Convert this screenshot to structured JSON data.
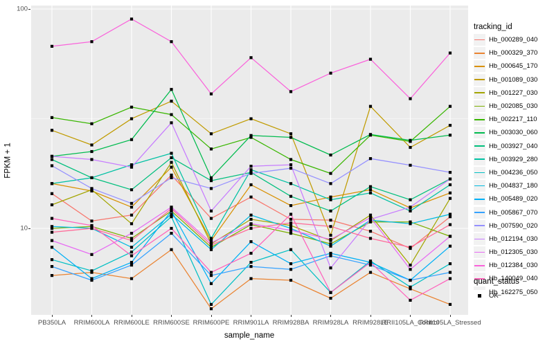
{
  "chart": {
    "y_axis": {
      "label": "FPKM + 1",
      "ticks": [
        "100",
        "10"
      ],
      "tick_values": [
        100,
        10
      ],
      "minor_tick_values": [
        31.62
      ],
      "range_approx": [
        4.0,
        104
      ],
      "scale": "log10"
    },
    "x_axis": {
      "label": "sample_name"
    },
    "legend": {
      "tracking_title": "tracking_id",
      "quant_title": "quant_status",
      "quant_items": [
        {
          "label": "OK",
          "symbol": "black-square"
        }
      ]
    },
    "panel_bg": "#EBEBEB",
    "grid_color": "#FFFFFF",
    "point_color": "#000000",
    "tick_label_color": "#4D4D4D"
  },
  "chart_data": {
    "type": "line",
    "title": "",
    "xlabel": "sample_name",
    "ylabel": "FPKM + 1",
    "y_scale": "log10",
    "grid": true,
    "legend_position": "right",
    "marker": "black-square",
    "categories": [
      "PB350LA",
      "RRIM600LA",
      "RRIM600LE",
      "RRIM600SE",
      "RRIM600PE",
      "RRIM901LA",
      "RRIM928BA",
      "RRIM928LA",
      "RRIM928LE",
      "RRII105LA_Control",
      "RRII105LA_Stressed"
    ],
    "series": [
      {
        "name": "Hb_000289_040",
        "color": "#F8766D",
        "values": [
          14.4,
          10.8,
          11.5,
          17.5,
          11.1,
          13.9,
          11.0,
          10.9,
          9.7,
          8.1,
          11.3
        ]
      },
      {
        "name": "Hb_000329_370",
        "color": "#EA8331",
        "values": [
          6.1,
          6.3,
          5.9,
          8.0,
          4.3,
          5.9,
          5.8,
          4.8,
          6.3,
          5.3,
          4.5
        ]
      },
      {
        "name": "Hb_000645_170",
        "color": "#D89000",
        "values": [
          16.0,
          14.8,
          12.5,
          19.0,
          8.8,
          15.8,
          12.7,
          13.9,
          15.0,
          12.4,
          14.5
        ]
      },
      {
        "name": "Hb_001089_030",
        "color": "#C09B00",
        "values": [
          28.0,
          24.0,
          31.6,
          38.0,
          27.0,
          31.6,
          27.0,
          9.3,
          36.0,
          23.4,
          29.5
        ]
      },
      {
        "name": "Hb_001227_030",
        "color": "#A3A500",
        "values": [
          12.8,
          15.0,
          10.5,
          20.0,
          8.5,
          11.0,
          10.3,
          8.8,
          11.5,
          6.8,
          13.7
        ]
      },
      {
        "name": "Hb_002085_030",
        "color": "#7CAE00",
        "values": [
          10.0,
          10.2,
          9.0,
          12.0,
          8.2,
          10.4,
          9.5,
          8.5,
          10.7,
          10.7,
          9.2
        ]
      },
      {
        "name": "Hb_002217_110",
        "color": "#39B600",
        "values": [
          32.0,
          30.0,
          35.7,
          33.0,
          23.0,
          26.0,
          20.6,
          17.8,
          26.6,
          24.9,
          36.0
        ]
      },
      {
        "name": "Hb_003030_060",
        "color": "#00BB4E",
        "values": [
          21.3,
          22.4,
          25.4,
          43.0,
          17.0,
          26.5,
          26.0,
          21.6,
          26.8,
          25.2,
          26.6
        ]
      },
      {
        "name": "Hb_003927_040",
        "color": "#00BF7D",
        "values": [
          20.6,
          17.0,
          15.0,
          21.0,
          16.5,
          18.0,
          14.0,
          12.0,
          15.5,
          13.5,
          16.8
        ]
      },
      {
        "name": "Hb_003929_280",
        "color": "#00C1A3",
        "values": [
          16.0,
          17.0,
          19.5,
          22.0,
          9.0,
          18.5,
          16.0,
          13.5,
          14.5,
          12.0,
          15.8
        ]
      },
      {
        "name": "Hb_004236_050",
        "color": "#00BFC4",
        "values": [
          7.2,
          6.4,
          7.8,
          11.3,
          4.5,
          7.0,
          8.0,
          5.1,
          7.1,
          5.4,
          6.9
        ]
      },
      {
        "name": "Hb_004837_180",
        "color": "#00BAE0",
        "values": [
          10.2,
          10.0,
          8.2,
          11.6,
          8.0,
          11.5,
          10.0,
          8.3,
          10.9,
          10.5,
          11.6
        ]
      },
      {
        "name": "Hb_005489_020",
        "color": "#00B0F6",
        "values": [
          8.2,
          5.9,
          7.0,
          12.0,
          5.6,
          8.7,
          6.9,
          7.7,
          7.0,
          5.8,
          8.3
        ]
      },
      {
        "name": "Hb_005867_070",
        "color": "#35A2FF",
        "values": [
          6.7,
          5.8,
          6.8,
          9.5,
          6.1,
          6.7,
          6.5,
          7.5,
          6.8,
          5.8,
          6.3
        ]
      },
      {
        "name": "Hb_007590_020",
        "color": "#9590FF",
        "values": [
          19.3,
          15.2,
          13.0,
          17.0,
          15.2,
          17.8,
          18.8,
          16.0,
          20.8,
          19.4,
          18.0
        ]
      },
      {
        "name": "Hb_012194_030",
        "color": "#C77CFF",
        "values": [
          21.3,
          20.6,
          19.0,
          30.3,
          12.0,
          19.2,
          19.5,
          6.6,
          11.0,
          12.5,
          16.8
        ]
      },
      {
        "name": "Hb_012305_030",
        "color": "#E76BF3",
        "values": [
          8.8,
          7.6,
          9.5,
          12.5,
          8.6,
          10.5,
          9.8,
          8.9,
          11.2,
          6.5,
          9.2
        ]
      },
      {
        "name": "Hb_012384_030",
        "color": "#FA62DB",
        "values": [
          67.6,
          71.0,
          90.0,
          71.0,
          41.0,
          60.0,
          42.0,
          51.0,
          59.0,
          39.0,
          63.0
        ]
      },
      {
        "name": "Hb_140049_040",
        "color": "#FF62BC",
        "values": [
          11.1,
          10.3,
          7.5,
          10.0,
          6.3,
          7.7,
          11.6,
          5.1,
          7.0,
          4.7,
          5.9
        ]
      },
      {
        "name": "Hb_162275_050",
        "color": "#FF6A98",
        "values": [
          9.6,
          10.0,
          8.8,
          12.3,
          8.4,
          10.0,
          10.6,
          10.2,
          9.0,
          8.2,
          10.4
        ]
      }
    ]
  }
}
